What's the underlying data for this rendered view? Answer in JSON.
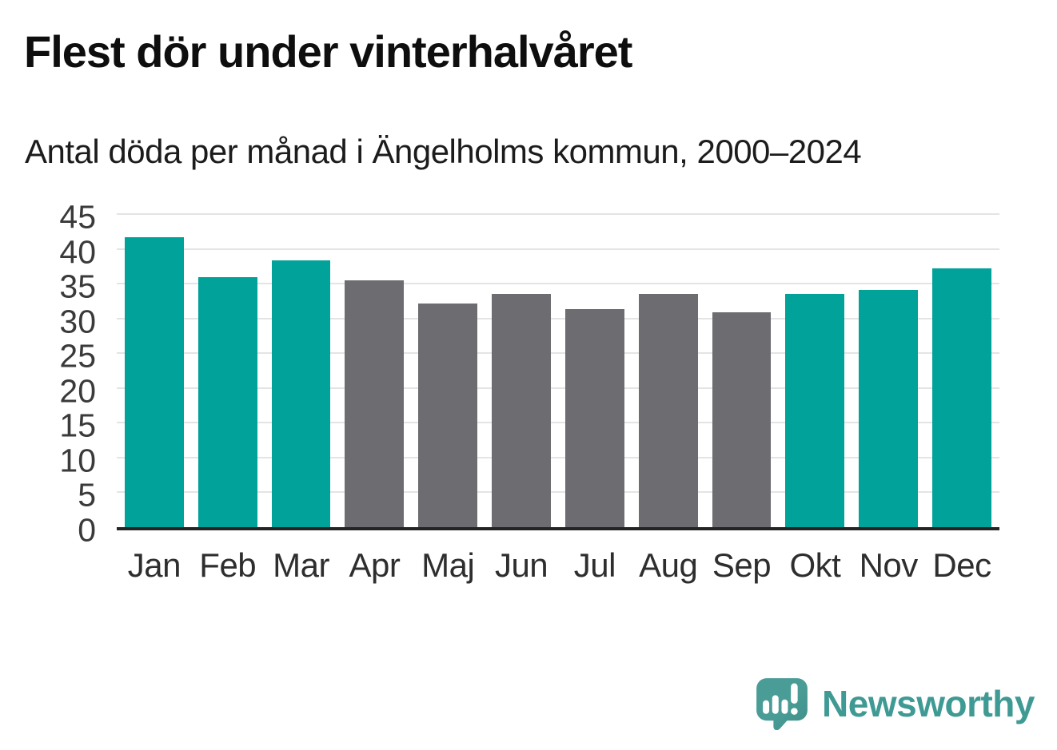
{
  "chart_data": {
    "type": "bar",
    "title": "Flest dör under vinterhalvåret",
    "subtitle": "Antal döda per månad i Ängelholms kommun, 2000–2024",
    "categories": [
      "Jan",
      "Feb",
      "Mar",
      "Apr",
      "Maj",
      "Jun",
      "Jul",
      "Aug",
      "Sep",
      "Okt",
      "Nov",
      "Dec"
    ],
    "values": [
      42.1,
      36.3,
      38.7,
      35.8,
      32.5,
      33.9,
      31.7,
      33.9,
      31.2,
      33.9,
      34.5,
      37.6
    ],
    "bar_color_keys": [
      "teal",
      "teal",
      "teal",
      "gray",
      "gray",
      "gray",
      "gray",
      "gray",
      "gray",
      "teal",
      "teal",
      "teal"
    ],
    "xlabel": "",
    "ylabel": "",
    "ylim": [
      0,
      45
    ],
    "ytick_step": 5,
    "grid": "horizontal",
    "legend": "none"
  },
  "colors": {
    "teal": "#00a29a",
    "gray": "#6c6c71",
    "gridline": "#e4e4e4",
    "axis_line": "#242424",
    "tick_text": "#3a3a3a",
    "title_text": "#0e0e0e",
    "brand_teal": "#3f9a94",
    "logo_fill": "#4a9c96",
    "logo_fill_dark": "#3e8f89"
  },
  "footer": {
    "brand": "Newsworthy"
  }
}
